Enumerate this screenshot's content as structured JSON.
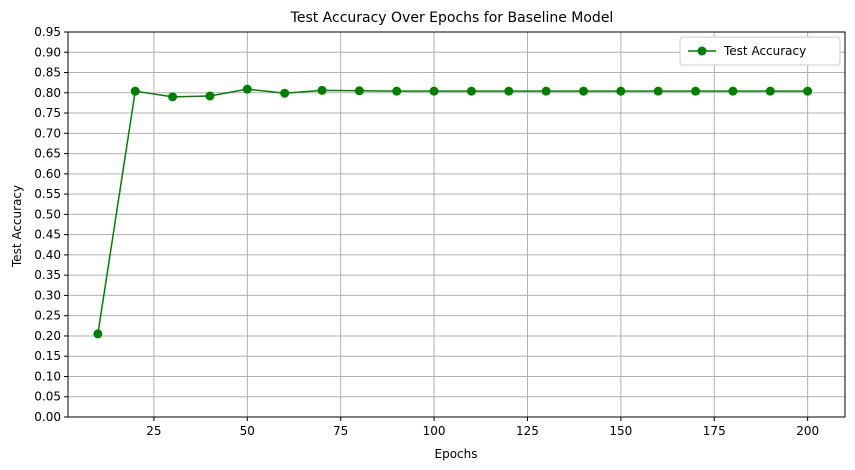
{
  "chart_data": {
    "type": "line",
    "title": "Test Accuracy Over Epochs for Baseline Model",
    "xlabel": "Epochs",
    "ylabel": "Test Accuracy",
    "xlim": [
      2,
      210
    ],
    "ylim": [
      0.0,
      0.95
    ],
    "xticks": [
      25,
      50,
      75,
      100,
      125,
      150,
      175,
      200
    ],
    "yticks": [
      0.0,
      0.05,
      0.1,
      0.15,
      0.2,
      0.25,
      0.3,
      0.35,
      0.4,
      0.45,
      0.5,
      0.55,
      0.6,
      0.65,
      0.7,
      0.75,
      0.8,
      0.85,
      0.9,
      0.95
    ],
    "xtick_labels": [
      "25",
      "50",
      "75",
      "100",
      "125",
      "150",
      "175",
      "200"
    ],
    "ytick_labels": [
      "0.00",
      "0.05",
      "0.10",
      "0.15",
      "0.20",
      "0.25",
      "0.30",
      "0.35",
      "0.40",
      "0.45",
      "0.50",
      "0.55",
      "0.60",
      "0.65",
      "0.70",
      "0.75",
      "0.80",
      "0.85",
      "0.90",
      "0.95"
    ],
    "grid": true,
    "legend_position": "top-right",
    "series": [
      {
        "name": "Test Accuracy",
        "color": "#008000",
        "marker": "circle",
        "x": [
          10,
          20,
          30,
          40,
          50,
          60,
          70,
          80,
          90,
          100,
          110,
          120,
          130,
          140,
          150,
          160,
          170,
          180,
          190,
          200
        ],
        "y": [
          0.205,
          0.804,
          0.79,
          0.792,
          0.809,
          0.799,
          0.806,
          0.805,
          0.804,
          0.804,
          0.804,
          0.804,
          0.804,
          0.804,
          0.804,
          0.804,
          0.804,
          0.804,
          0.804,
          0.804
        ]
      }
    ]
  }
}
